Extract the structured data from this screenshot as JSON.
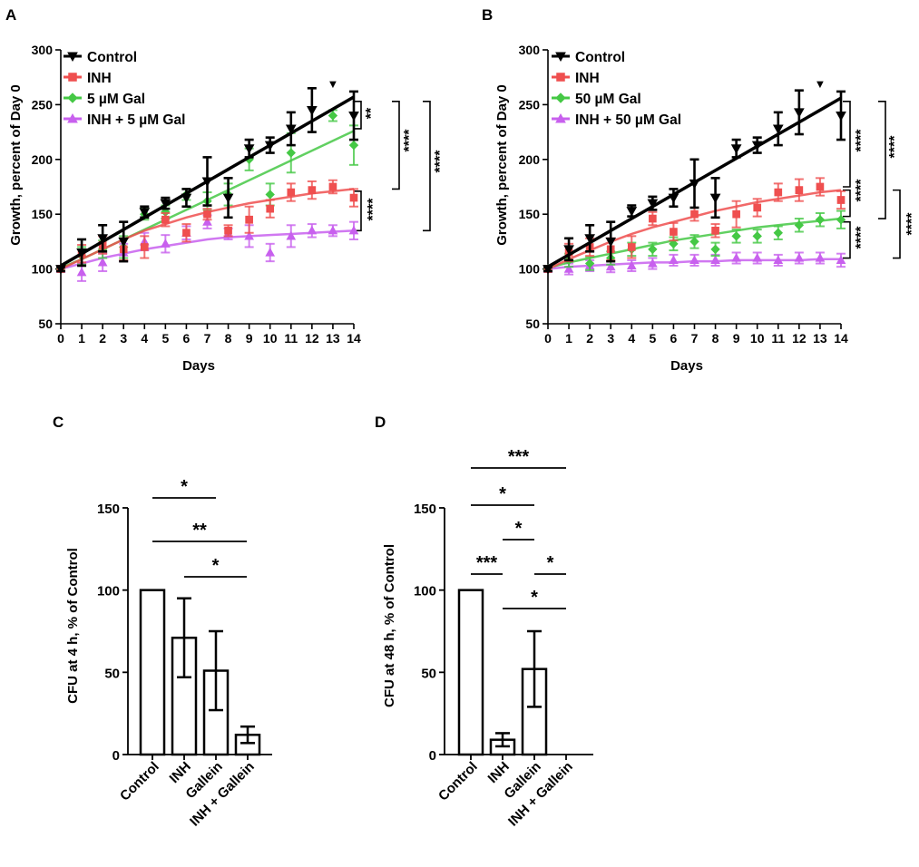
{
  "chart_data": [
    {
      "panel": "A",
      "type": "line",
      "xlabel": "Days",
      "ylabel": "Growth, percent of Day 0",
      "x": [
        0,
        1,
        2,
        3,
        4,
        5,
        6,
        7,
        8,
        9,
        10,
        11,
        12,
        13,
        14
      ],
      "x_ticks": [
        0,
        1,
        2,
        3,
        4,
        5,
        6,
        7,
        8,
        9,
        10,
        11,
        12,
        13,
        14
      ],
      "ylim": [
        50,
        300
      ],
      "y_ticks": [
        50,
        100,
        150,
        200,
        250,
        300
      ],
      "legend": [
        "Control",
        "INH",
        "5 µM Gal",
        "INH + 5 µM Gal"
      ],
      "series": [
        {
          "name": "Control",
          "color": "#000000",
          "marker": "triangle-down",
          "values": [
            100,
            115,
            128,
            125,
            152,
            160,
            165,
            180,
            165,
            210,
            213,
            228,
            245,
            null,
            240
          ],
          "errors": [
            2,
            12,
            12,
            18,
            5,
            5,
            8,
            22,
            18,
            8,
            7,
            15,
            20,
            0,
            22
          ],
          "fit": [
            103,
            114,
            125,
            136,
            147,
            158,
            169,
            180,
            191,
            202,
            213,
            224,
            235,
            246,
            257
          ]
        },
        {
          "name": "INH",
          "color": "#ef4f4f",
          "marker": "square",
          "values": [
            100,
            114,
            122,
            118,
            120,
            145,
            133,
            150,
            135,
            145,
            155,
            170,
            172,
            175,
            165
          ],
          "errors": [
            2,
            8,
            8,
            10,
            10,
            6,
            8,
            5,
            5,
            12,
            8,
            8,
            8,
            6,
            8
          ],
          "fit": [
            100,
            109,
            118,
            127,
            135,
            141,
            147,
            152,
            156,
            160,
            163,
            166,
            169,
            171,
            173
          ]
        },
        {
          "name": "5 µM Gal",
          "color": "#45c845",
          "marker": "diamond",
          "values": [
            100,
            112,
            118,
            120,
            150,
            152,
            168,
            162,
            168,
            200,
            168,
            206,
            null,
            240,
            213
          ],
          "errors": [
            2,
            8,
            8,
            10,
            5,
            6,
            5,
            8,
            10,
            10,
            10,
            18,
            0,
            5,
            18
          ],
          "fit": [
            101,
            109,
            118,
            127,
            136,
            145,
            154,
            163,
            172,
            181,
            190,
            199,
            208,
            217,
            226
          ]
        },
        {
          "name": "INH + 5 µM Gal",
          "color": "#c860ee",
          "marker": "triangle-up",
          "values": [
            100,
            97,
            106,
            115,
            125,
            123,
            133,
            143,
            132,
            130,
            115,
            130,
            135,
            135,
            135
          ],
          "errors": [
            2,
            8,
            8,
            8,
            8,
            8,
            6,
            6,
            5,
            10,
            8,
            10,
            6,
            5,
            8
          ],
          "fit": [
            100,
            105,
            110,
            114,
            118,
            121,
            124,
            127,
            129,
            130,
            131,
            132,
            133,
            134,
            135
          ]
        }
      ],
      "marker_above": {
        "x": 13,
        "label": "▼"
      },
      "significance": [
        {
          "between": "Control vs 5 µM Gal",
          "label": "**"
        },
        {
          "between": "Control vs INH",
          "label": "****"
        },
        {
          "between": "INH vs INH + 5 µM Gal",
          "label": "****"
        },
        {
          "between": "Control vs INH + 5 µM Gal",
          "label": "****"
        }
      ]
    },
    {
      "panel": "B",
      "type": "line",
      "xlabel": "Days",
      "ylabel": "Growth, percent of Day 0",
      "x": [
        0,
        1,
        2,
        3,
        4,
        5,
        6,
        7,
        8,
        9,
        10,
        11,
        12,
        13,
        14
      ],
      "x_ticks": [
        0,
        1,
        2,
        3,
        4,
        5,
        6,
        7,
        8,
        9,
        10,
        11,
        12,
        13,
        14
      ],
      "ylim": [
        50,
        300
      ],
      "y_ticks": [
        50,
        100,
        150,
        200,
        250,
        300
      ],
      "legend": [
        "Control",
        "INH",
        "50 µM Gal",
        "INH + 50 µM Gal"
      ],
      "series": [
        {
          "name": "Control",
          "color": "#000000",
          "marker": "triangle-down",
          "values": [
            100,
            118,
            128,
            125,
            153,
            160,
            165,
            178,
            165,
            210,
            213,
            228,
            243,
            null,
            240
          ],
          "errors": [
            2,
            10,
            12,
            18,
            5,
            6,
            8,
            22,
            18,
            8,
            7,
            15,
            20,
            0,
            22
          ],
          "fit": [
            102,
            113,
            124,
            135,
            146,
            157,
            168,
            179,
            190,
            201,
            212,
            223,
            234,
            245,
            256
          ]
        },
        {
          "name": "INH",
          "color": "#ef4f4f",
          "marker": "square",
          "values": [
            100,
            115,
            120,
            118,
            120,
            146,
            134,
            150,
            135,
            150,
            156,
            170,
            172,
            175,
            163
          ],
          "errors": [
            2,
            8,
            8,
            10,
            10,
            6,
            8,
            6,
            6,
            12,
            8,
            8,
            10,
            8,
            8
          ],
          "fit": [
            100,
            109,
            117,
            125,
            132,
            138,
            143,
            148,
            153,
            157,
            161,
            164,
            167,
            170,
            172
          ]
        },
        {
          "name": "50 µM Gal",
          "color": "#45c845",
          "marker": "diamond",
          "values": [
            100,
            108,
            105,
            110,
            118,
            118,
            123,
            125,
            118,
            130,
            130,
            133,
            140,
            145,
            145
          ],
          "errors": [
            2,
            6,
            6,
            6,
            6,
            6,
            6,
            6,
            6,
            6,
            6,
            6,
            6,
            6,
            8
          ],
          "fit": [
            101,
            106,
            110,
            114,
            118,
            122,
            126,
            129,
            132,
            135,
            138,
            140,
            142,
            144,
            146
          ]
        },
        {
          "name": "INH + 50 µM Gal",
          "color": "#c860ee",
          "marker": "triangle-up",
          "values": [
            100,
            100,
            103,
            102,
            103,
            105,
            108,
            108,
            108,
            110,
            110,
            108,
            110,
            110,
            108
          ],
          "errors": [
            2,
            5,
            5,
            5,
            5,
            5,
            5,
            5,
            5,
            5,
            5,
            5,
            5,
            5,
            6
          ],
          "fit": [
            100,
            102,
            103,
            104,
            105,
            106,
            106,
            107,
            107,
            108,
            108,
            108,
            108,
            109,
            109
          ]
        }
      ],
      "marker_above": {
        "x": 13,
        "label": "▼"
      },
      "significance": [
        {
          "between": "Control vs INH",
          "label": "****"
        },
        {
          "between": "Control vs 50 µM Gal",
          "label": "****"
        },
        {
          "between": "INH vs 50 µM Gal",
          "label": "****"
        },
        {
          "between": "50 µM Gal vs INH + 50 µM Gal",
          "label": "****"
        },
        {
          "between": "INH vs INH + 50 µM Gal",
          "label": "****"
        }
      ]
    },
    {
      "panel": "C",
      "type": "bar",
      "ylabel": "CFU at 4 h, % of Control",
      "categories": [
        "Control",
        "INH",
        "Gallein",
        "INH + Gallein"
      ],
      "values": [
        100,
        71,
        51,
        12
      ],
      "errors": [
        0,
        24,
        24,
        5
      ],
      "ylim": [
        0,
        150
      ],
      "y_ticks": [
        0,
        50,
        100,
        150
      ],
      "significance": [
        {
          "from": 0,
          "to": 2,
          "label": "*"
        },
        {
          "from": 0,
          "to": 3,
          "label": "**"
        },
        {
          "from": 1,
          "to": 3,
          "label": "*"
        }
      ]
    },
    {
      "panel": "D",
      "type": "bar",
      "ylabel": "CFU at 48 h, % of Control",
      "categories": [
        "Control",
        "INH",
        "Gallein",
        "INH + Gallein"
      ],
      "values": [
        100,
        9,
        52,
        0
      ],
      "errors": [
        0,
        4,
        23,
        0
      ],
      "ylim": [
        0,
        150
      ],
      "y_ticks": [
        0,
        50,
        100,
        150
      ],
      "significance": [
        {
          "from": 0,
          "to": 3,
          "label": "***"
        },
        {
          "from": 0,
          "to": 2,
          "label": "*"
        },
        {
          "from": 1,
          "to": 2,
          "label": "*"
        },
        {
          "from": 0,
          "to": 1,
          "label": "***"
        },
        {
          "from": 2,
          "to": 3,
          "label": "*"
        },
        {
          "from": 1,
          "to": 3,
          "label": "*"
        }
      ]
    }
  ]
}
